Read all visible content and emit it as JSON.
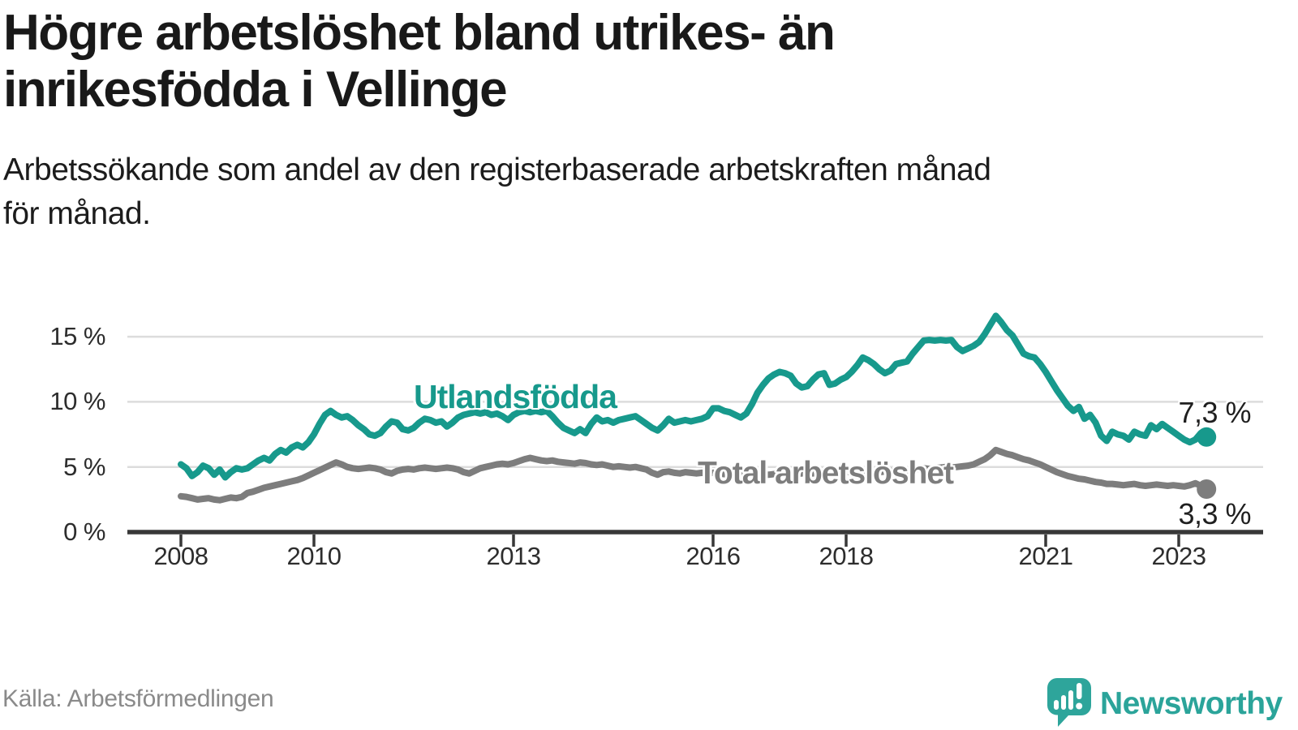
{
  "header": {
    "title": "Högre arbetslöshet bland utrikes- än\ninrikesfödda i Vellinge",
    "subtitle": "Arbetssökande som andel av den registerbaserade arbetskraften månad\nför månad."
  },
  "footer": {
    "source": "Källa: Arbetsförmedlingen",
    "brand": "Newsworthy"
  },
  "colors": {
    "foreign_born_line": "#17998c",
    "total_line": "#7d7d7d",
    "grid": "#dcdcdc",
    "axis": "#383838",
    "brand_teal": "#2ba49a"
  },
  "chart_data": {
    "type": "line",
    "title": "Högre arbetslöshet bland utrikes- än inrikesfödda i Vellinge",
    "subtitle": "Arbetssökande som andel av den registerbaserade arbetskraften månad för månad.",
    "x_axis": {
      "start_year": 2008,
      "interval": "monthly",
      "tick_years": [
        2008,
        2010,
        2013,
        2016,
        2018,
        2021,
        2023
      ],
      "tick_labels": [
        "2008",
        "2010",
        "2013",
        "2016",
        "2018",
        "2021",
        "2023"
      ]
    },
    "y_axis": {
      "unit": "%",
      "ticks": [
        0,
        5,
        10,
        15
      ],
      "tick_labels": [
        "0 %",
        "5 %",
        "10 %",
        "15 %"
      ],
      "range": [
        0,
        17
      ]
    },
    "grid": true,
    "legend_position": "inline-labels",
    "series": [
      {
        "name": "Utlandsfödda",
        "color": "#17998c",
        "end_label": "7,3 %",
        "end_value": 7.3,
        "values": [
          5.2,
          4.9,
          4.3,
          4.6,
          5.1,
          4.9,
          4.4,
          4.8,
          4.2,
          4.6,
          4.9,
          4.8,
          4.9,
          5.2,
          5.5,
          5.7,
          5.5,
          6.0,
          6.3,
          6.1,
          6.5,
          6.7,
          6.5,
          6.9,
          7.5,
          8.3,
          9.0,
          9.3,
          9.0,
          8.8,
          8.9,
          8.6,
          8.2,
          7.9,
          7.5,
          7.4,
          7.6,
          8.1,
          8.5,
          8.4,
          7.9,
          7.8,
          8.0,
          8.4,
          8.7,
          8.6,
          8.4,
          8.5,
          8.1,
          8.4,
          8.8,
          9.0,
          9.1,
          9.2,
          9.1,
          9.2,
          9.0,
          9.1,
          8.9,
          8.6,
          9.0,
          9.2,
          9.3,
          9.2,
          9.3,
          9.2,
          9.3,
          8.9,
          8.4,
          8.0,
          7.8,
          7.6,
          7.9,
          7.6,
          8.3,
          8.8,
          8.5,
          8.6,
          8.4,
          8.6,
          8.7,
          8.8,
          8.9,
          8.6,
          8.3,
          8.0,
          7.8,
          8.2,
          8.7,
          8.4,
          8.5,
          8.6,
          8.5,
          8.6,
          8.7,
          8.9,
          9.5,
          9.5,
          9.3,
          9.2,
          9.0,
          8.8,
          9.1,
          9.8,
          10.7,
          11.3,
          11.8,
          12.1,
          12.3,
          12.2,
          12.0,
          11.4,
          11.1,
          11.2,
          11.7,
          12.1,
          12.2,
          11.3,
          11.4,
          11.7,
          11.9,
          12.3,
          12.8,
          13.4,
          13.2,
          12.9,
          12.5,
          12.2,
          12.4,
          12.9,
          13.0,
          13.1,
          13.7,
          14.2,
          14.7,
          14.75,
          14.7,
          14.75,
          14.7,
          14.75,
          14.2,
          13.9,
          14.1,
          14.3,
          14.6,
          15.2,
          15.9,
          16.6,
          16.1,
          15.5,
          15.1,
          14.4,
          13.7,
          13.5,
          13.4,
          12.9,
          12.3,
          11.6,
          10.9,
          10.3,
          9.7,
          9.3,
          9.6,
          8.7,
          9.0,
          8.4,
          7.4,
          7.0,
          7.7,
          7.5,
          7.4,
          7.1,
          7.7,
          7.5,
          7.4,
          8.2,
          7.9,
          8.3,
          8.0,
          7.7,
          7.4,
          7.1,
          6.9,
          7.1,
          7.6,
          7.3
        ]
      },
      {
        "name": "Total arbetslöshet",
        "color": "#7d7d7d",
        "end_label": "3,3 %",
        "end_value": 3.3,
        "values": [
          2.75,
          2.7,
          2.6,
          2.5,
          2.55,
          2.6,
          2.5,
          2.45,
          2.55,
          2.65,
          2.6,
          2.7,
          3.0,
          3.1,
          3.25,
          3.4,
          3.5,
          3.6,
          3.7,
          3.8,
          3.9,
          4.0,
          4.15,
          4.35,
          4.55,
          4.75,
          4.95,
          5.15,
          5.35,
          5.2,
          5.0,
          4.9,
          4.85,
          4.9,
          4.95,
          4.9,
          4.8,
          4.6,
          4.5,
          4.7,
          4.8,
          4.85,
          4.8,
          4.9,
          4.95,
          4.9,
          4.85,
          4.9,
          4.95,
          4.9,
          4.8,
          4.6,
          4.5,
          4.7,
          4.9,
          5.0,
          5.1,
          5.2,
          5.25,
          5.2,
          5.3,
          5.45,
          5.6,
          5.7,
          5.6,
          5.5,
          5.45,
          5.5,
          5.4,
          5.35,
          5.3,
          5.25,
          5.35,
          5.3,
          5.2,
          5.15,
          5.2,
          5.1,
          5.0,
          5.05,
          5.0,
          4.95,
          5.0,
          4.9,
          4.8,
          4.55,
          4.4,
          4.6,
          4.65,
          4.55,
          4.5,
          4.6,
          4.55,
          4.5,
          4.55,
          4.5,
          4.55,
          4.5,
          4.45,
          4.4,
          4.5,
          4.45,
          4.4,
          4.45,
          4.5,
          4.45,
          4.4,
          4.45,
          4.5,
          4.45,
          4.4,
          4.45,
          4.5,
          4.55,
          4.5,
          4.55,
          4.6,
          4.55,
          4.6,
          4.65,
          4.6,
          4.65,
          4.6,
          4.65,
          4.6,
          4.55,
          4.6,
          4.65,
          4.7,
          4.65,
          4.7,
          4.75,
          4.8,
          4.85,
          4.9,
          4.85,
          4.9,
          4.95,
          5.0,
          4.95,
          5.0,
          5.05,
          5.1,
          5.2,
          5.4,
          5.6,
          5.9,
          6.3,
          6.15,
          6.0,
          5.9,
          5.75,
          5.6,
          5.5,
          5.35,
          5.2,
          5.0,
          4.8,
          4.6,
          4.45,
          4.3,
          4.2,
          4.1,
          4.05,
          3.95,
          3.85,
          3.8,
          3.7,
          3.7,
          3.65,
          3.6,
          3.65,
          3.7,
          3.6,
          3.55,
          3.6,
          3.65,
          3.6,
          3.55,
          3.6,
          3.55,
          3.5,
          3.6,
          3.75,
          3.55,
          3.3
        ]
      }
    ],
    "source": "Källa: Arbetsförmedlingen"
  }
}
